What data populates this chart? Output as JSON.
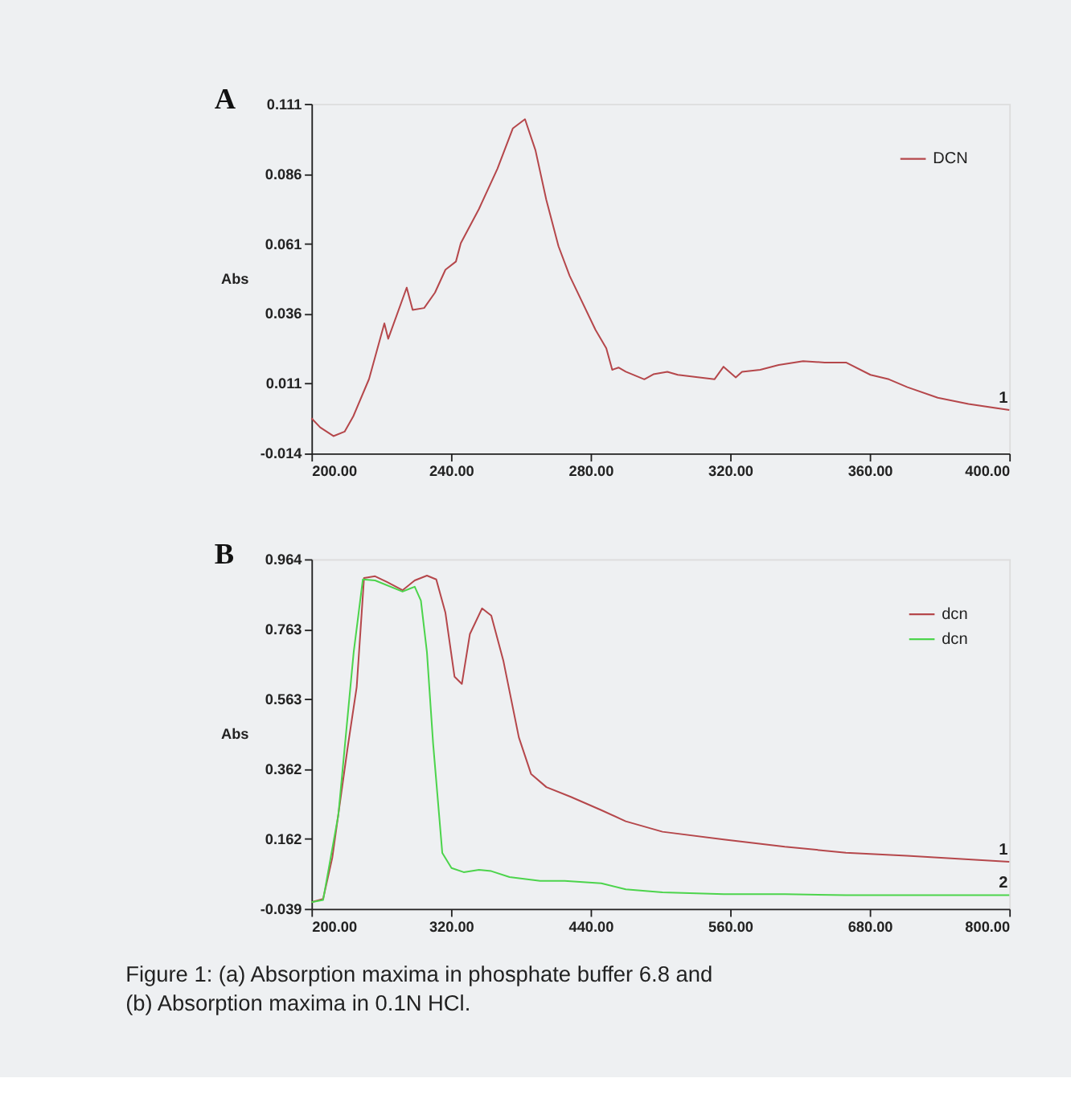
{
  "chart_data": [
    {
      "type": "line",
      "title": "A",
      "ylabel": "Abs",
      "xlim": [
        200,
        400
      ],
      "xticks": [
        {
          "value": 200,
          "label": "200.00"
        },
        {
          "value": 240,
          "label": "240.00"
        },
        {
          "value": 280,
          "label": "280.00"
        },
        {
          "value": 320,
          "label": "320.00"
        },
        {
          "value": 360,
          "label": "360.00"
        },
        {
          "value": 400,
          "label": "400.00"
        }
      ],
      "ylim": [
        -0.014,
        0.111
      ],
      "yticks": [
        -0.014,
        0.011,
        0.036,
        0.061,
        0.086,
        0.111
      ],
      "grid": false,
      "legend": "top right",
      "line_style": "solid",
      "marker": "none",
      "series": [
        {
          "name": "DCN",
          "color": "#b5474b",
          "x": [
            200,
            202.5,
            206.3,
            209.5,
            212,
            216.5,
            220.9,
            222,
            227.3,
            229,
            232.3,
            235.4,
            238.4,
            241.4,
            242.8,
            248,
            253.3,
            257.7,
            261.2,
            264.2,
            267.3,
            270.8,
            274,
            281.4,
            284.5,
            286.2,
            288,
            290.1,
            295.4,
            298,
            302,
            305,
            311.2,
            315.5,
            318.1,
            321.6,
            323.4,
            328.6,
            333.9,
            340.9,
            347.1,
            353.2,
            360.2,
            365.5,
            370.8,
            379.5,
            388.3,
            400
          ],
          "values": [
            -0.0014,
            -0.0047,
            -0.0078,
            -0.0062,
            -0.0007,
            0.0126,
            0.0325,
            0.027,
            0.0453,
            0.0373,
            0.038,
            0.0435,
            0.0517,
            0.0546,
            0.0612,
            0.0734,
            0.0878,
            0.1022,
            0.1055,
            0.0944,
            0.0767,
            0.0601,
            0.0495,
            0.0302,
            0.0236,
            0.0159,
            0.0167,
            0.0152,
            0.0125,
            0.0143,
            0.0152,
            0.0141,
            0.0132,
            0.0125,
            0.017,
            0.0132,
            0.0152,
            0.0159,
            0.0176,
            0.019,
            0.0185,
            0.0185,
            0.0141,
            0.0125,
            0.0097,
            0.0059,
            0.0037,
            0.0015
          ]
        }
      ],
      "annotations": [
        "1"
      ]
    },
    {
      "type": "line",
      "title": "B",
      "ylabel": "Abs",
      "xlim": [
        200,
        800
      ],
      "xticks": [
        {
          "value": 200,
          "label": "200.00"
        },
        {
          "value": 320,
          "label": "320.00"
        },
        {
          "value": 440,
          "label": "440.00"
        },
        {
          "value": 560,
          "label": "560.00"
        },
        {
          "value": 680,
          "label": "680.00"
        },
        {
          "value": 800,
          "label": "800.00"
        }
      ],
      "ylim": [
        -0.039,
        0.964
      ],
      "yticks": [
        -0.039,
        0.162,
        0.362,
        0.563,
        0.763,
        0.964
      ],
      "grid": false,
      "legend": "top right",
      "line_style": "solid",
      "marker": "none",
      "series": [
        {
          "name": "dcn",
          "color": "#b5474b",
          "x": [
            200,
            210,
            217.9,
            231,
            238.9,
            245.2,
            254.7,
            265.2,
            278.3,
            288.8,
            299.3,
            307.3,
            315.2,
            323,
            329.3,
            336.2,
            346.7,
            354.6,
            365.1,
            378.3,
            388.8,
            402,
            423,
            449.2,
            470.2,
            501.8,
            554.4,
            607,
            659.5,
            712,
            800
          ],
          "values": [
            -0.02,
            -0.011,
            0.107,
            0.421,
            0.597,
            0.91,
            0.915,
            0.898,
            0.875,
            0.903,
            0.917,
            0.906,
            0.81,
            0.627,
            0.606,
            0.749,
            0.823,
            0.802,
            0.671,
            0.453,
            0.348,
            0.31,
            0.282,
            0.244,
            0.212,
            0.182,
            0.16,
            0.139,
            0.122,
            0.113,
            0.096
          ]
        },
        {
          "name": "dcn",
          "color": "#4cd44c",
          "x": [
            200,
            210,
            223.1,
            236.3,
            244.2,
            254.7,
            278.3,
            288.8,
            294.1,
            299.3,
            304.6,
            312.5,
            320.4,
            330.9,
            344,
            354.6,
            370.3,
            396.6,
            417.7,
            449.2,
            470.2,
            501.8,
            554.4,
            607,
            659.5,
            800
          ],
          "values": [
            -0.02,
            -0.014,
            0.23,
            0.697,
            0.906,
            0.903,
            0.871,
            0.885,
            0.845,
            0.697,
            0.435,
            0.121,
            0.078,
            0.066,
            0.073,
            0.069,
            0.052,
            0.041,
            0.041,
            0.034,
            0.017,
            0.008,
            0.003,
            0.003,
            0.0,
            0.0
          ]
        }
      ],
      "annotations": [
        "1",
        "2",
        "Figure 1: (a) Absorption maxima in phosphate buffer 6.8 and (b) Absorption maxima in 0.1N HCl."
      ]
    }
  ]
}
